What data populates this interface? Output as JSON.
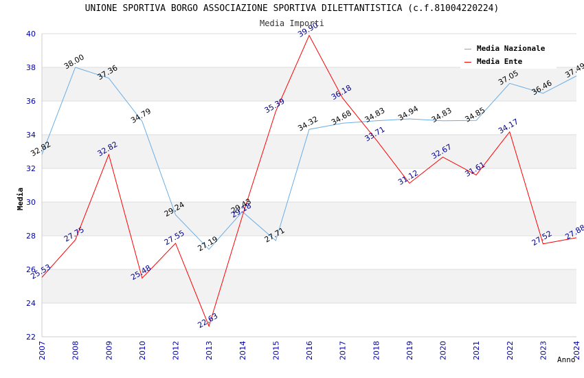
{
  "header": {
    "title": "UNIONE SPORTIVA BORGO ASSOCIAZIONE SPORTIVA DILETTANTISTICA (c.f.81004220224)",
    "subtitle": "Media Importi"
  },
  "chart_data": {
    "type": "line",
    "title": "UNIONE SPORTIVA BORGO ASSOCIAZIONE SPORTIVA DILETTANTISTICA (c.f.81004220224)",
    "subtitle": "Media Importi",
    "xlabel": "Anno",
    "ylabel": "Media",
    "ylim": [
      22,
      40
    ],
    "yticks": [
      "22",
      "24",
      "26",
      "28",
      "30",
      "32",
      "34",
      "36",
      "38",
      "40"
    ],
    "categories": [
      "2007",
      "2008",
      "2009",
      "2010",
      "2012",
      "2013",
      "2014",
      "2015",
      "2016",
      "2017",
      "2018",
      "2019",
      "2020",
      "2021",
      "2022",
      "2023",
      "2024"
    ],
    "grid": true,
    "legend_position": "top-right",
    "series": [
      {
        "name": "Media Nazionale",
        "color": "#6aaee6",
        "label_color": "#000000",
        "values": [
          32.82,
          38.0,
          37.36,
          34.79,
          29.24,
          27.19,
          29.43,
          27.71,
          34.32,
          34.68,
          34.83,
          34.94,
          34.83,
          34.85,
          37.05,
          36.46,
          37.49
        ],
        "labels": [
          "32.82",
          "38.00",
          "37.36",
          "34.79",
          "29.24",
          "27.19",
          "29.43",
          "27.71",
          "34.32",
          "34.68",
          "34.83",
          "34.94",
          "34.83",
          "34.85",
          "37.05",
          "36.46",
          "37.49"
        ]
      },
      {
        "name": "Media Ente",
        "color": "#ff0000",
        "label_color": "#00008b",
        "values": [
          25.53,
          27.75,
          32.82,
          25.48,
          27.55,
          22.63,
          29.18,
          35.39,
          39.9,
          36.18,
          33.71,
          31.12,
          32.67,
          31.61,
          34.17,
          27.52,
          27.88
        ],
        "labels": [
          "25.53",
          "27.75",
          "32.82",
          "25.48",
          "27.55",
          "22.63",
          "29.18",
          "35.39",
          "39.90",
          "36.18",
          "33.71",
          "31.12",
          "32.67",
          "31.61",
          "34.17",
          "27.52",
          "27.88"
        ]
      }
    ]
  }
}
